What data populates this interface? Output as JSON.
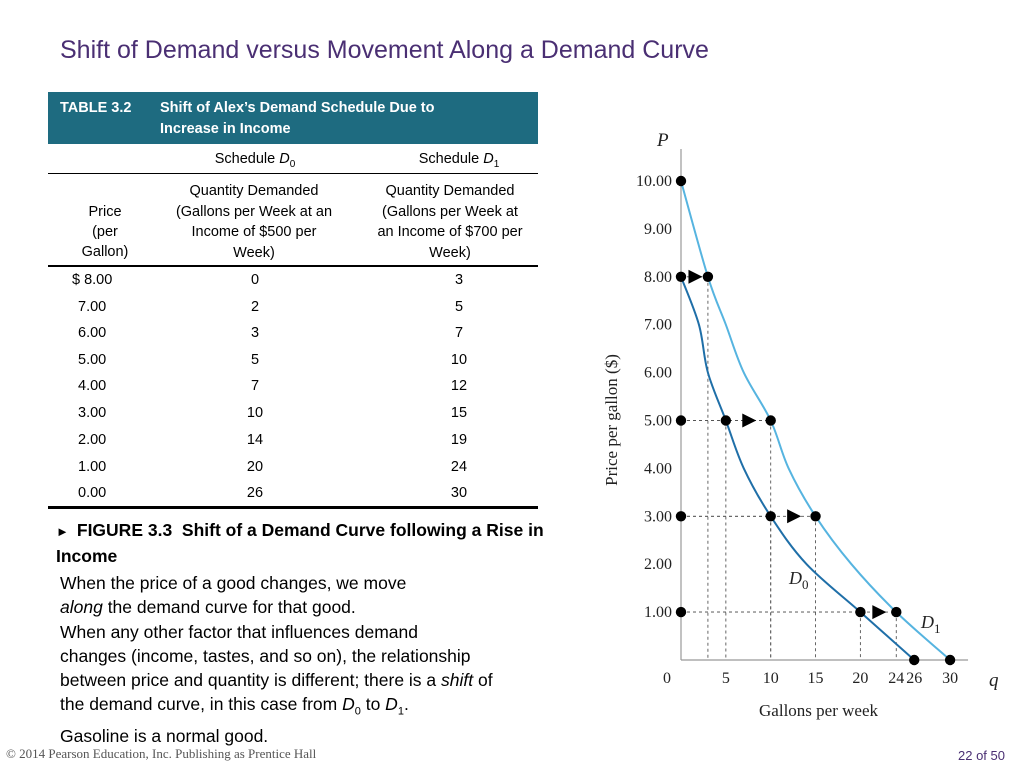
{
  "slide": {
    "title": "Shift of Demand versus Movement Along a Demand Curve",
    "copyright": "© 2014 Pearson Education, Inc. Publishing as Prentice Hall",
    "page_number": "22 of 50"
  },
  "table": {
    "number": "TABLE 3.2",
    "caption_line1": "Shift of Alex’s Demand Schedule Due to",
    "caption_line2": "Increase in Income",
    "header_color": "#1e6b80",
    "schedule_d0_prefix": "Schedule ",
    "schedule_d0_italic": "D",
    "schedule_d0_sub": "0",
    "schedule_d1_prefix": "Schedule ",
    "schedule_d1_italic": "D",
    "schedule_d1_sub": "1",
    "col_price": [
      "Price",
      "(per",
      "Gallon)"
    ],
    "col_d0": [
      "Quantity Demanded",
      "(Gallons per Week at an",
      "Income of $500 per",
      "Week)"
    ],
    "col_d1": [
      "Quantity Demanded",
      "(Gallons per Week at",
      "an Income of $700 per",
      "Week)"
    ],
    "rows": [
      {
        "price": "$ 8.00",
        "q0": "0",
        "q1": "3"
      },
      {
        "price": "7.00",
        "q0": "2",
        "q1": "5"
      },
      {
        "price": "6.00",
        "q0": "3",
        "q1": "7"
      },
      {
        "price": "5.00",
        "q0": "5",
        "q1": "10"
      },
      {
        "price": "4.00",
        "q0": "7",
        "q1": "12"
      },
      {
        "price": "3.00",
        "q0": "10",
        "q1": "15"
      },
      {
        "price": "2.00",
        "q0": "14",
        "q1": "19"
      },
      {
        "price": "1.00",
        "q0": "20",
        "q1": "24"
      },
      {
        "price": "0.00",
        "q0": "26",
        "q1": "30"
      }
    ]
  },
  "figure": {
    "marker": "►",
    "label": "FIGURE 3.3",
    "caption": "Shift of a Demand  Curve following a Rise in Income"
  },
  "body_text": {
    "p1_a": "When the price of a good changes, we move",
    "p1_b_italic": "along",
    "p1_b_rest": " the demand curve for that good.",
    "p2_a": "When any other factor that influences demand",
    "p2_b": "changes (income, tastes, and so on), the relationship",
    "p2_c_a": "between price and quantity is different; there is a ",
    "p2_c_italic": "shift",
    "p2_c_b": " of",
    "p2_d_a": "the demand curve, in this case from ",
    "p2_d_d": "D",
    "p2_d_sub0": "0",
    "p2_d_to": " to ",
    "p2_d_d1": "D",
    "p2_d_sub1": "1",
    "p2_d_end": ".",
    "p3": "Gasoline is a normal good."
  },
  "chart_data": {
    "type": "line",
    "title": "",
    "xlabel": "Gallons per week",
    "ylabel": "Price per gallon ($)",
    "x_axis_symbol": "q",
    "y_axis_symbol": "P",
    "xlim": [
      0,
      32
    ],
    "ylim": [
      0,
      10.5
    ],
    "x_ticks": [
      0,
      5,
      10,
      15,
      20,
      24,
      26,
      30
    ],
    "x_tick_labels": [
      "0",
      "5",
      "10",
      "15",
      "20",
      "24",
      "26",
      "30"
    ],
    "y_ticks": [
      1,
      2,
      3,
      4,
      5,
      6,
      7,
      8,
      9,
      10
    ],
    "y_tick_labels": [
      "1.00",
      "2.00",
      "3.00",
      "4.00",
      "5.00",
      "6.00",
      "7.00",
      "8.00",
      "9.00",
      "10.00"
    ],
    "series": [
      {
        "name": "D",
        "sub": "0",
        "color": "#1f6fa8",
        "x": [
          0,
          2,
          3,
          5,
          7,
          10,
          14,
          20,
          26
        ],
        "y": [
          8,
          7,
          6,
          5,
          4,
          3,
          2,
          1,
          0
        ]
      },
      {
        "name": "D",
        "sub": "1",
        "color": "#56b4e0",
        "x": [
          0,
          3,
          5,
          7,
          10,
          12,
          15,
          19,
          24,
          30
        ],
        "y": [
          10,
          8,
          7,
          6,
          5,
          4,
          3,
          2,
          1,
          0
        ]
      }
    ],
    "points": [
      {
        "x": 0,
        "y": 10
      },
      {
        "x": 0,
        "y": 8
      },
      {
        "x": 3,
        "y": 8
      },
      {
        "x": 0,
        "y": 5
      },
      {
        "x": 5,
        "y": 5
      },
      {
        "x": 10,
        "y": 5
      },
      {
        "x": 0,
        "y": 3
      },
      {
        "x": 10,
        "y": 3
      },
      {
        "x": 15,
        "y": 3
      },
      {
        "x": 0,
        "y": 1
      },
      {
        "x": 20,
        "y": 1
      },
      {
        "x": 24,
        "y": 1
      },
      {
        "x": 26,
        "y": 0
      },
      {
        "x": 30,
        "y": 0
      }
    ],
    "shift_arrows": [
      {
        "y": 8,
        "from": 0,
        "to": 3
      },
      {
        "y": 5,
        "from": 5,
        "to": 10
      },
      {
        "y": 3,
        "from": 10,
        "to": 15
      },
      {
        "y": 1,
        "from": 20,
        "to": 24
      }
    ],
    "guides": [
      {
        "x": 3,
        "y": 8
      },
      {
        "x": 5,
        "y": 5
      },
      {
        "x": 10,
        "y": 5
      },
      {
        "x": 10,
        "y": 3
      },
      {
        "x": 15,
        "y": 3
      },
      {
        "x": 20,
        "y": 1
      },
      {
        "x": 24,
        "y": 1
      }
    ]
  }
}
